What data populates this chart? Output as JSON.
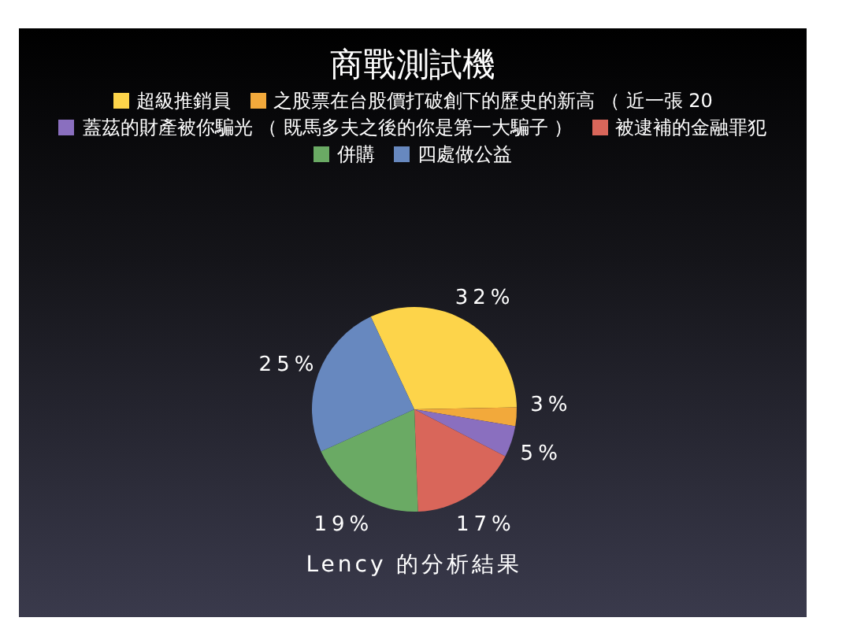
{
  "chart_data": {
    "type": "pie",
    "title": "商戰測試機",
    "legend": "top",
    "categories": [
      "超級推銷員",
      "之股票在台股價打破創下的歷史的新高 （ 近一張 20",
      "蓋茲的財產被你騙光 （ 既馬多夫之後的你是第一大騙子 ）",
      "被逮補的金融罪犯",
      "併購",
      "四處做公益"
    ],
    "values": [
      32,
      3,
      5,
      17,
      19,
      25
    ],
    "value_labels": [
      "32%",
      "3%",
      "5%",
      "17%",
      "19%",
      "25%"
    ],
    "colors": [
      "#fdd44a",
      "#f2a93b",
      "#8a6fbf",
      "#d9665a",
      "#6aaa64",
      "#6788bf"
    ],
    "annotations": [
      "Lency 的分析結果"
    ]
  }
}
